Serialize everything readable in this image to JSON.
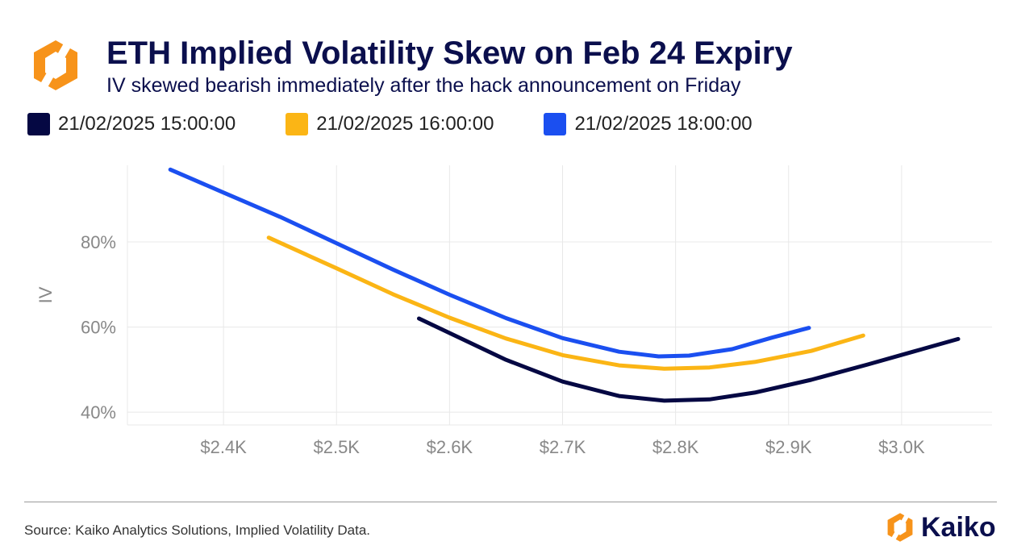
{
  "header": {
    "title": "ETH Implied Volatility Skew on Feb 24 Expiry",
    "subtitle": "IV skewed bearish immediately after the hack announcement on Friday"
  },
  "footer": {
    "source": "Source: Kaiko Analytics Solutions, Implied Volatility Data.",
    "brand": "Kaiko"
  },
  "colors": {
    "navy": "#050843",
    "yellow": "#fbb515",
    "blue": "#1b4ff0",
    "logo_orange": "#f7931a"
  },
  "chart_data": {
    "type": "line",
    "title": "ETH Implied Volatility Skew on Feb 24 Expiry",
    "subtitle": "IV skewed bearish immediately after the hack announcement on Friday",
    "xlabel": "",
    "ylabel": "IV",
    "xlim": [
      2315,
      3080
    ],
    "ylim": [
      37,
      98
    ],
    "xticks": [
      2400,
      2500,
      2600,
      2700,
      2800,
      2900,
      3000
    ],
    "xtick_labels": [
      "$2.4K",
      "$2.5K",
      "$2.6K",
      "$2.7K",
      "$2.8K",
      "$2.9K",
      "$3.0K"
    ],
    "yticks": [
      40,
      60,
      80
    ],
    "ytick_labels": [
      "40%",
      "60%",
      "80%"
    ],
    "grid": true,
    "legend_position": "top-left",
    "series": [
      {
        "name": "21/02/2025 15:00:00",
        "color": "#050843",
        "x": [
          2573,
          2600,
          2650,
          2700,
          2750,
          2790,
          2830,
          2870,
          2920,
          2970,
          3010,
          3050
        ],
        "y": [
          62.0,
          58.6,
          52.3,
          47.2,
          43.8,
          42.7,
          43.0,
          44.6,
          47.6,
          51.2,
          54.2,
          57.2
        ]
      },
      {
        "name": "21/02/2025 16:00:00",
        "color": "#fbb515",
        "x": [
          2440,
          2500,
          2550,
          2600,
          2650,
          2700,
          2750,
          2790,
          2830,
          2870,
          2920,
          2966
        ],
        "y": [
          81.0,
          73.8,
          67.7,
          62.2,
          57.3,
          53.4,
          51.0,
          50.2,
          50.5,
          51.8,
          54.4,
          58.0
        ]
      },
      {
        "name": "21/02/2025 18:00:00",
        "color": "#1b4ff0",
        "x": [
          2353,
          2400,
          2450,
          2500,
          2550,
          2600,
          2650,
          2700,
          2750,
          2785,
          2812,
          2850,
          2885,
          2918
        ],
        "y": [
          97.0,
          91.6,
          85.9,
          79.7,
          73.5,
          67.6,
          62.1,
          57.4,
          54.2,
          53.1,
          53.3,
          54.8,
          57.5,
          59.8
        ]
      }
    ]
  }
}
